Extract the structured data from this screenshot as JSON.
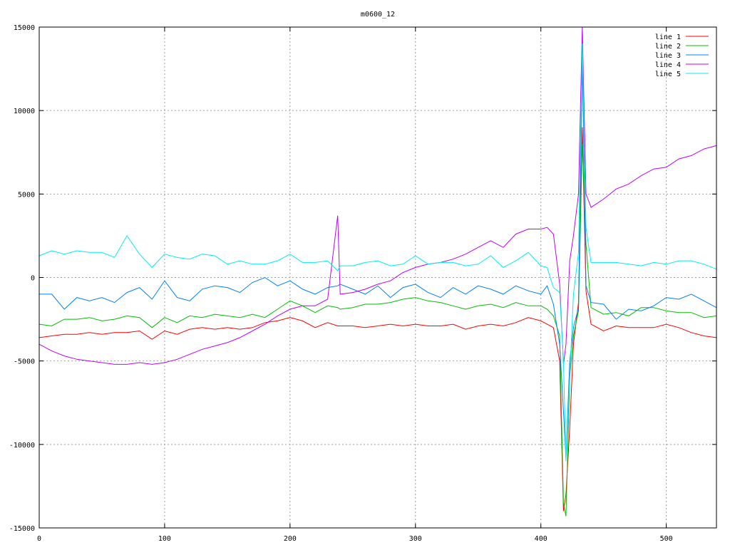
{
  "chart_data": {
    "type": "line",
    "title": "m0600_12",
    "xlabel": "",
    "ylabel": "",
    "xlim": [
      0,
      540
    ],
    "ylim": [
      -15000,
      15000
    ],
    "xticks": [
      0,
      100,
      200,
      300,
      400,
      500
    ],
    "yticks": [
      -15000,
      -10000,
      -5000,
      0,
      5000,
      10000,
      15000
    ],
    "grid": true,
    "legend_position": "top-right",
    "x": [
      0,
      10,
      20,
      30,
      40,
      50,
      60,
      70,
      80,
      90,
      100,
      110,
      120,
      130,
      140,
      150,
      160,
      170,
      180,
      190,
      200,
      210,
      220,
      230,
      238,
      240,
      250,
      260,
      270,
      280,
      290,
      300,
      310,
      320,
      330,
      340,
      350,
      360,
      370,
      380,
      390,
      400,
      405,
      410,
      415,
      418,
      420,
      423,
      426,
      430,
      433,
      436,
      440,
      450,
      460,
      470,
      480,
      490,
      500,
      510,
      520,
      530,
      540
    ],
    "series": [
      {
        "name": "line 1",
        "color": "#ff0000",
        "values": [
          -3600,
          -3500,
          -3400,
          -3400,
          -3300,
          -3400,
          -3300,
          -3300,
          -3200,
          -3700,
          -3200,
          -3400,
          -3100,
          -3000,
          -3100,
          -3000,
          -3100,
          -3000,
          -2700,
          -2600,
          -2400,
          -2600,
          -3000,
          -2700,
          -2900,
          -2900,
          -2900,
          -3000,
          -2900,
          -2800,
          -2900,
          -2800,
          -2900,
          -2900,
          -2800,
          -3100,
          -2900,
          -2800,
          -2900,
          -2700,
          -2400,
          -2600,
          -2800,
          -3000,
          -5000,
          -14000,
          -13000,
          -9000,
          -4000,
          -1500,
          9000,
          -800,
          -2800,
          -3200,
          -2900,
          -3000,
          -3000,
          -3000,
          -2800,
          -3000,
          -3300,
          -3500,
          -3600
        ]
      },
      {
        "name": "line 2",
        "color": "#00c000",
        "values": [
          -2800,
          -2900,
          -2500,
          -2500,
          -2400,
          -2600,
          -2500,
          -2300,
          -2400,
          -3000,
          -2400,
          -2700,
          -2300,
          -2400,
          -2200,
          -2300,
          -2400,
          -2200,
          -2400,
          -1900,
          -1400,
          -1700,
          -2100,
          -1700,
          -1800,
          -1900,
          -1800,
          -1600,
          -1600,
          -1500,
          -1300,
          -1200,
          -1400,
          -1500,
          -1700,
          -1900,
          -1700,
          -1600,
          -1800,
          -1500,
          -1700,
          -1700,
          -1900,
          -2300,
          -3500,
          -13500,
          -14300,
          -6000,
          -3500,
          -2000,
          8000,
          2000,
          -1800,
          -2200,
          -2100,
          -2300,
          -1800,
          -1800,
          -2000,
          -2100,
          -2100,
          -2400,
          -2300
        ]
      },
      {
        "name": "line 3",
        "color": "#0080ff",
        "values": [
          -1000,
          -1000,
          -1900,
          -1200,
          -1400,
          -1200,
          -1500,
          -900,
          -600,
          -1300,
          -200,
          -1200,
          -1400,
          -700,
          -500,
          -600,
          -900,
          -300,
          0,
          -500,
          -200,
          -700,
          -1000,
          -600,
          -500,
          -400,
          -700,
          -1000,
          -500,
          -1200,
          -600,
          -400,
          -900,
          -1200,
          -600,
          -1000,
          -500,
          -700,
          -1000,
          -500,
          -800,
          -1000,
          -500,
          -1600,
          -4000,
          -8000,
          -10800,
          -5000,
          -3000,
          -1800,
          13000,
          -500,
          -1500,
          -1600,
          -2500,
          -1900,
          -2000,
          -1700,
          -1200,
          -1300,
          -1000,
          -1400,
          -1800
        ]
      },
      {
        "name": "line 4",
        "color": "#c000ff",
        "values": [
          -4000,
          -4400,
          -4700,
          -4900,
          -5000,
          -5100,
          -5200,
          -5200,
          -5100,
          -5200,
          -5100,
          -4900,
          -4600,
          -4300,
          -4100,
          -3900,
          -3600,
          -3200,
          -2800,
          -2300,
          -1900,
          -1700,
          -1700,
          -1300,
          3700,
          -1000,
          -900,
          -700,
          -400,
          -200,
          300,
          600,
          800,
          900,
          1100,
          1400,
          1800,
          2200,
          1800,
          2600,
          2900,
          2900,
          3000,
          2600,
          -400,
          -5200,
          -4000,
          1000,
          2500,
          5000,
          15000,
          5000,
          4200,
          4700,
          5300,
          5600,
          6100,
          6500,
          6600,
          7100,
          7300,
          7700,
          7900
        ]
      },
      {
        "name": "line 5",
        "color": "#00eeee",
        "values": [
          1300,
          1600,
          1400,
          1600,
          1500,
          1500,
          1200,
          2500,
          1400,
          600,
          1400,
          1200,
          1100,
          1400,
          1300,
          800,
          1000,
          800,
          800,
          1000,
          1400,
          900,
          900,
          1000,
          400,
          700,
          700,
          900,
          1000,
          700,
          800,
          1300,
          800,
          900,
          900,
          700,
          800,
          1300,
          600,
          1000,
          1500,
          700,
          600,
          -600,
          -900,
          -5000,
          -11000,
          -6000,
          -1000,
          1500,
          14000,
          3000,
          900,
          900,
          900,
          800,
          700,
          900,
          800,
          1000,
          1000,
          800,
          500
        ]
      }
    ]
  }
}
